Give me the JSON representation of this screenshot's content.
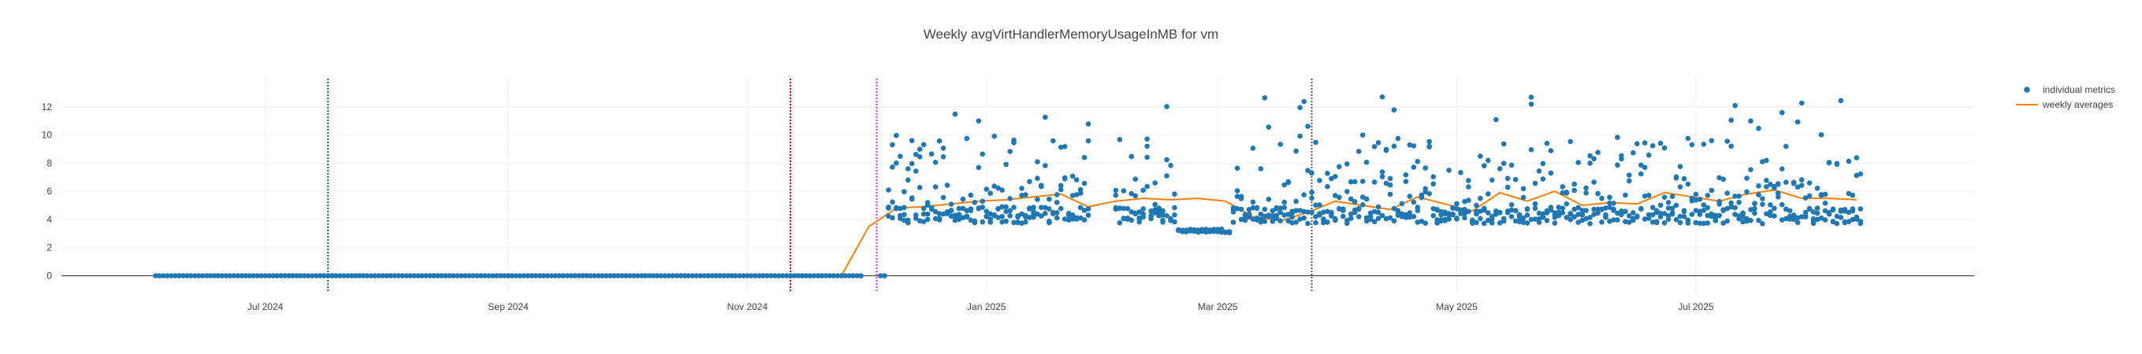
{
  "chart_data": {
    "type": "scatter",
    "title": "Weekly avgVirtHandlerMemoryUsageInMB for vm",
    "xlabel": "",
    "ylabel": "",
    "x_range": [
      "2024-05-10",
      "2025-09-10"
    ],
    "ylim": [
      -1.2,
      14
    ],
    "y_ticks": [
      0,
      2,
      4,
      6,
      8,
      10,
      12
    ],
    "x_ticks": [
      {
        "date": "2024-07-01",
        "label": "Jul 2024"
      },
      {
        "date": "2024-09-01",
        "label": "Sep 2024"
      },
      {
        "date": "2024-11-01",
        "label": "Nov 2024"
      },
      {
        "date": "2025-01-01",
        "label": "Jan 2025"
      },
      {
        "date": "2025-03-01",
        "label": "Mar 2025"
      },
      {
        "date": "2025-05-01",
        "label": "May 2025"
      },
      {
        "date": "2025-07-01",
        "label": "Jul 2025"
      }
    ],
    "grid": true,
    "legend_position": "top-right",
    "vertical_lines": [
      {
        "date": "2024-07-17",
        "color": "#008000",
        "style": "dotted"
      },
      {
        "date": "2024-11-12",
        "color": "#cc0000",
        "style": "dotted"
      },
      {
        "date": "2024-12-04",
        "color": "#cc33cc",
        "style": "dotted"
      },
      {
        "date": "2025-03-25",
        "color": "#555555",
        "style": "dotted"
      }
    ],
    "series": [
      {
        "name": "individual metrics",
        "kind": "markers",
        "color": "#1f77b4",
        "segments": [
          {
            "start": "2024-06-03",
            "end": "2024-11-30",
            "value": 0
          },
          {
            "start": "2024-12-05",
            "end": "2024-12-06",
            "value": 0
          }
        ],
        "active_range": [
          "2024-12-07",
          "2025-08-12"
        ],
        "baseline": 4.2,
        "y_max": 12.8,
        "low_cluster": {
          "start": "2025-02-19",
          "end": "2025-03-04",
          "value": 3.2
        }
      },
      {
        "name": "weekly averages",
        "kind": "line",
        "color": "#ff7f0e",
        "points": [
          [
            "2024-06-03",
            0
          ],
          [
            "2024-06-10",
            0
          ],
          [
            "2024-06-17",
            0
          ],
          [
            "2024-06-24",
            0
          ],
          [
            "2024-07-01",
            0
          ],
          [
            "2024-07-08",
            0
          ],
          [
            "2024-07-15",
            0
          ],
          [
            "2024-07-22",
            0
          ],
          [
            "2024-07-29",
            0
          ],
          [
            "2024-08-05",
            0
          ],
          [
            "2024-08-12",
            0
          ],
          [
            "2024-08-19",
            0
          ],
          [
            "2024-08-26",
            0
          ],
          [
            "2024-09-02",
            0
          ],
          [
            "2024-09-09",
            0
          ],
          [
            "2024-09-16",
            0
          ],
          [
            "2024-09-23",
            0
          ],
          [
            "2024-09-30",
            0
          ],
          [
            "2024-10-07",
            0
          ],
          [
            "2024-10-14",
            0
          ],
          [
            "2024-10-21",
            0
          ],
          [
            "2024-10-28",
            0
          ],
          [
            "2024-11-04",
            0
          ],
          [
            "2024-11-11",
            0
          ],
          [
            "2024-11-18",
            0
          ],
          [
            "2024-11-25",
            0
          ],
          [
            "2024-12-02",
            3.5
          ],
          [
            "2024-12-09",
            4.8
          ],
          [
            "2024-12-16",
            4.9
          ],
          [
            "2024-12-23",
            5.1
          ],
          [
            "2024-12-30",
            5.3
          ],
          [
            "2025-01-06",
            5.4
          ],
          [
            "2025-01-13",
            5.6
          ],
          [
            "2025-01-20",
            5.8
          ],
          [
            "2025-01-27",
            4.9
          ],
          [
            "2025-02-03",
            5.3
          ],
          [
            "2025-02-10",
            5.5
          ],
          [
            "2025-02-17",
            5.4
          ],
          [
            "2025-02-24",
            5.5
          ],
          [
            "2025-03-03",
            5.3
          ],
          [
            "2025-03-10",
            4.2
          ],
          [
            "2025-03-17",
            3.9
          ],
          [
            "2025-03-24",
            4.5
          ],
          [
            "2025-03-31",
            5.3
          ],
          [
            "2025-04-07",
            5.0
          ],
          [
            "2025-04-14",
            4.7
          ],
          [
            "2025-04-21",
            5.6
          ],
          [
            "2025-04-28",
            5.1
          ],
          [
            "2025-05-05",
            4.6
          ],
          [
            "2025-05-12",
            5.9
          ],
          [
            "2025-05-19",
            5.3
          ],
          [
            "2025-05-26",
            6.0
          ],
          [
            "2025-06-02",
            5.0
          ],
          [
            "2025-06-09",
            5.2
          ],
          [
            "2025-06-16",
            5.1
          ],
          [
            "2025-06-23",
            5.9
          ],
          [
            "2025-06-30",
            5.6
          ],
          [
            "2025-07-07",
            5.3
          ],
          [
            "2025-07-14",
            5.8
          ],
          [
            "2025-07-21",
            6.1
          ],
          [
            "2025-07-28",
            5.5
          ],
          [
            "2025-08-04",
            5.5
          ],
          [
            "2025-08-11",
            5.4
          ]
        ]
      }
    ]
  }
}
